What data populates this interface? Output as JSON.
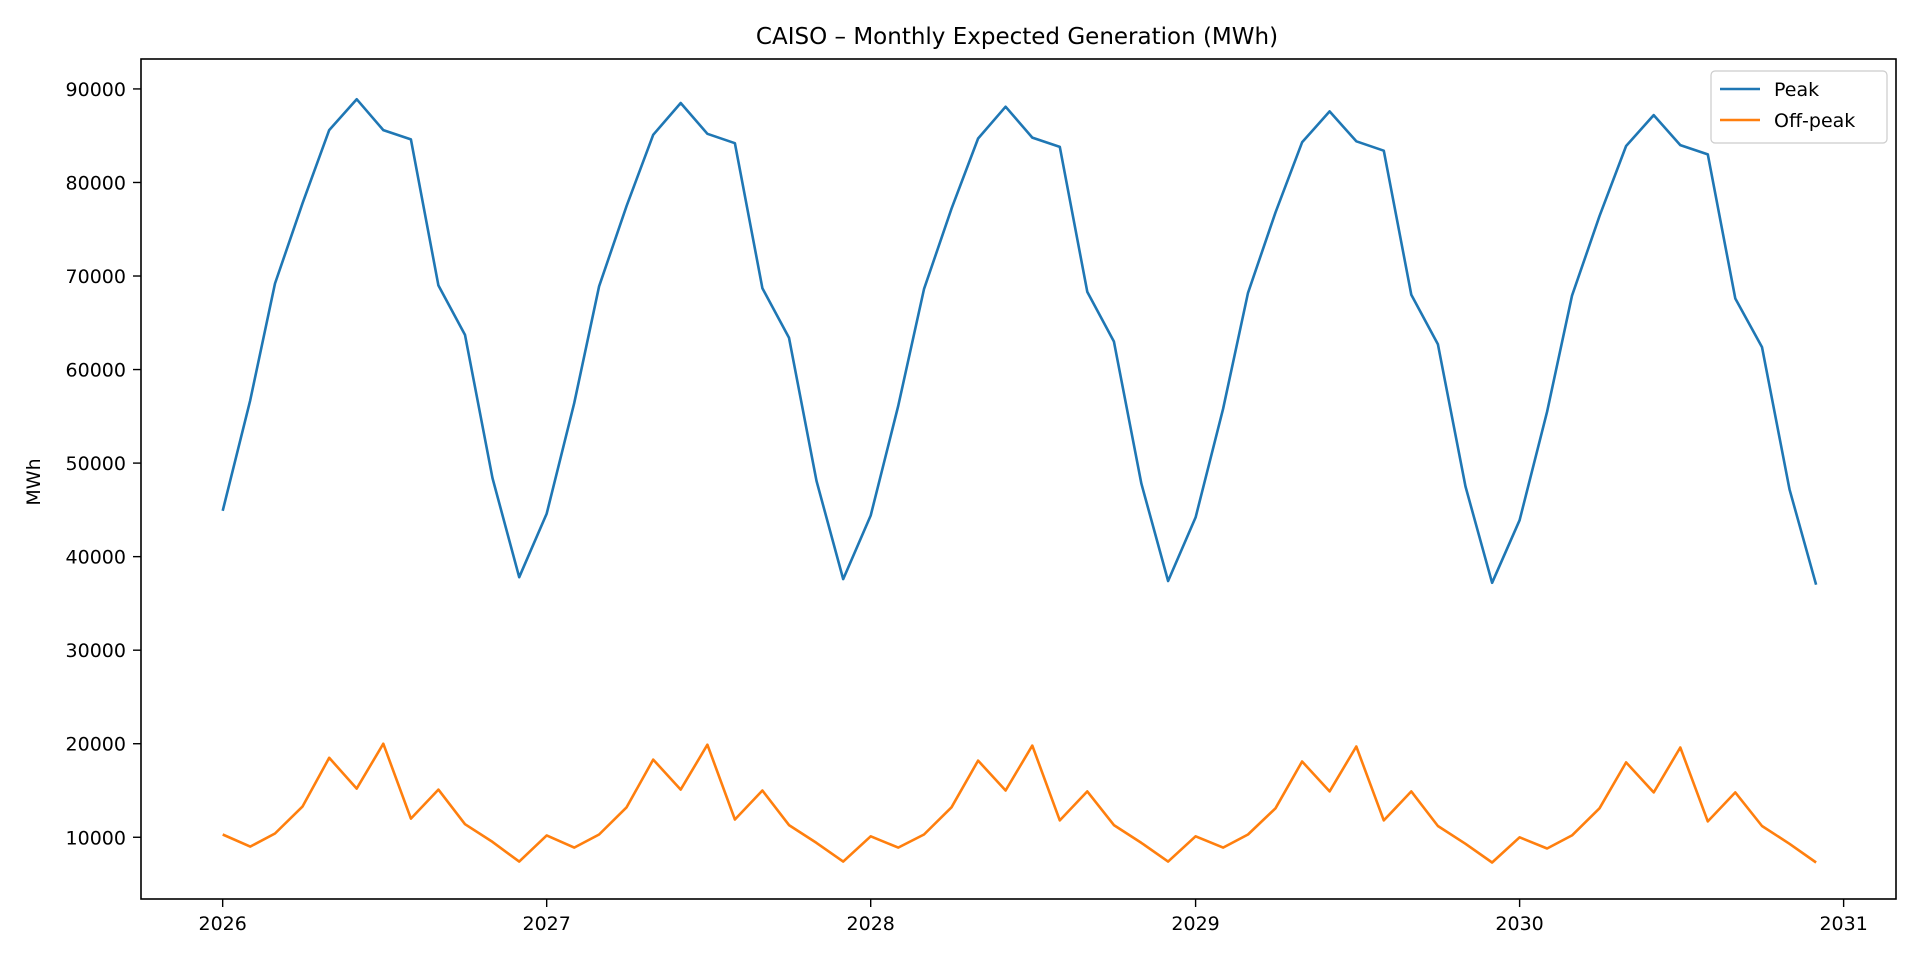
{
  "chart_data": {
    "type": "line",
    "title": "CAISO – Monthly Expected Generation (MWh)",
    "xlabel": "",
    "ylabel": "MWh",
    "x_ticks": [
      "2026",
      "2027",
      "2028",
      "2029",
      "2030",
      "2031"
    ],
    "y_ticks": [
      "10000",
      "20000",
      "30000",
      "40000",
      "50000",
      "60000",
      "70000",
      "80000",
      "90000"
    ],
    "x_range": [
      "2025-10-01",
      "2031-03-01"
    ],
    "ylim": [
      3400,
      93200
    ],
    "grid": false,
    "legend_position": "top-right",
    "x": [
      "2026-01",
      "2026-02",
      "2026-03",
      "2026-04",
      "2026-05",
      "2026-06",
      "2026-07",
      "2026-08",
      "2026-09",
      "2026-10",
      "2026-11",
      "2026-12",
      "2027-01",
      "2027-02",
      "2027-03",
      "2027-04",
      "2027-05",
      "2027-06",
      "2027-07",
      "2027-08",
      "2027-09",
      "2027-10",
      "2027-11",
      "2027-12",
      "2028-01",
      "2028-02",
      "2028-03",
      "2028-04",
      "2028-05",
      "2028-06",
      "2028-07",
      "2028-08",
      "2028-09",
      "2028-10",
      "2028-11",
      "2028-12",
      "2029-01",
      "2029-02",
      "2029-03",
      "2029-04",
      "2029-05",
      "2029-06",
      "2029-07",
      "2029-08",
      "2029-09",
      "2029-10",
      "2029-11",
      "2029-12",
      "2030-01",
      "2030-02",
      "2030-03",
      "2030-04",
      "2030-05",
      "2030-06",
      "2030-07",
      "2030-08",
      "2030-09",
      "2030-10",
      "2030-11",
      "2030-12"
    ],
    "series": [
      {
        "name": "Peak",
        "color": "#1f77b4",
        "values": [
          44900,
          56700,
          69200,
          77800,
          85600,
          88900,
          85600,
          84600,
          69000,
          63700,
          48400,
          37800,
          44600,
          56400,
          68900,
          77500,
          85100,
          88500,
          85200,
          84200,
          68700,
          63400,
          48100,
          37600,
          44400,
          56100,
          68600,
          77200,
          84700,
          88100,
          84800,
          83800,
          68300,
          63000,
          47800,
          37400,
          44200,
          55800,
          68200,
          76800,
          84300,
          87600,
          84400,
          83400,
          68000,
          62700,
          47500,
          37200,
          43900,
          55500,
          67900,
          76400,
          83900,
          87200,
          84000,
          83000,
          67600,
          62400,
          47200,
          37000
        ]
      },
      {
        "name": "Off-peak",
        "color": "#ff7f0e",
        "values": [
          10300,
          9000,
          10400,
          13300,
          18500,
          15200,
          20000,
          12000,
          15100,
          11400,
          9500,
          7400,
          10200,
          8900,
          10300,
          13200,
          18300,
          15100,
          19900,
          11900,
          15000,
          11300,
          9400,
          7400,
          10100,
          8900,
          10300,
          13200,
          18200,
          15000,
          19800,
          11800,
          14900,
          11300,
          9400,
          7400,
          10100,
          8900,
          10300,
          13100,
          18100,
          14900,
          19700,
          11800,
          14900,
          11200,
          9300,
          7300,
          10000,
          8800,
          10200,
          13100,
          18000,
          14800,
          19600,
          11700,
          14800,
          11200,
          9300,
          7300
        ]
      }
    ]
  }
}
